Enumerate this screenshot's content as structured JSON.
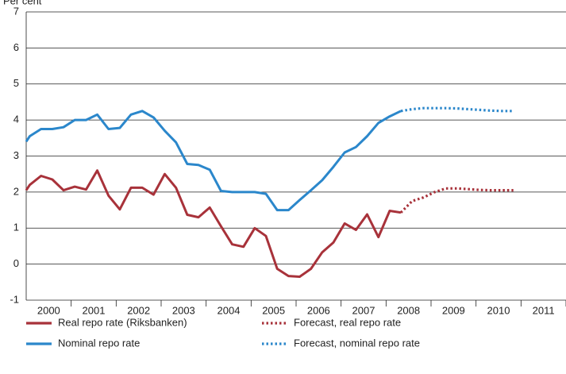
{
  "chart_data": {
    "type": "line",
    "ylabel": "Per cent",
    "ylim": [
      -1,
      7
    ],
    "yticks": [
      -1,
      0,
      1,
      2,
      3,
      4,
      5,
      6,
      7
    ],
    "xlim": [
      2000,
      2012
    ],
    "xticks": [
      {
        "value": 2000.5,
        "label": "2000"
      },
      {
        "value": 2001.5,
        "label": "2001"
      },
      {
        "value": 2002.5,
        "label": "2002"
      },
      {
        "value": 2003.5,
        "label": "2003"
      },
      {
        "value": 2004.5,
        "label": "2004"
      },
      {
        "value": 2005.5,
        "label": "2005"
      },
      {
        "value": 2006.5,
        "label": "2006"
      },
      {
        "value": 2007.5,
        "label": "2007"
      },
      {
        "value": 2008.5,
        "label": "2008"
      },
      {
        "value": 2009.5,
        "label": "2009"
      },
      {
        "value": 2010.5,
        "label": "2010"
      },
      {
        "value": 2011.5,
        "label": "2011"
      }
    ],
    "grid": true,
    "series": [
      {
        "name": "Real repo rate (Riksbanken)",
        "color": "#a8323a",
        "dashed": false,
        "x": [
          2000.0,
          2000.08,
          2000.33,
          2000.58,
          2000.83,
          2001.08,
          2001.33,
          2001.58,
          2001.83,
          2002.08,
          2002.33,
          2002.58,
          2002.83,
          2003.08,
          2003.33,
          2003.58,
          2003.83,
          2004.08,
          2004.33,
          2004.58,
          2004.83,
          2005.08,
          2005.33,
          2005.58,
          2005.83,
          2006.08,
          2006.33,
          2006.58,
          2006.83,
          2007.08,
          2007.33,
          2007.58,
          2007.83,
          2008.08,
          2008.33
        ],
        "values": [
          2.05,
          2.2,
          2.45,
          2.35,
          2.05,
          2.15,
          2.07,
          2.6,
          1.9,
          1.52,
          2.12,
          2.12,
          1.93,
          2.5,
          2.12,
          1.37,
          1.3,
          1.57,
          1.05,
          0.55,
          0.48,
          1.0,
          0.78,
          -0.13,
          -0.33,
          -0.35,
          -0.13,
          0.33,
          0.6,
          1.13,
          0.95,
          1.38,
          0.75,
          1.48,
          1.43
        ]
      },
      {
        "name": "Nominal repo rate",
        "color": "#2b87cb",
        "dashed": false,
        "x": [
          2000.0,
          2000.08,
          2000.33,
          2000.58,
          2000.83,
          2001.08,
          2001.33,
          2001.58,
          2001.83,
          2002.08,
          2002.33,
          2002.58,
          2002.83,
          2003.08,
          2003.33,
          2003.58,
          2003.83,
          2004.08,
          2004.33,
          2004.58,
          2004.83,
          2005.08,
          2005.33,
          2005.58,
          2005.83,
          2006.08,
          2006.33,
          2006.58,
          2006.83,
          2007.08,
          2007.33,
          2007.58,
          2007.83,
          2008.08,
          2008.33
        ],
        "values": [
          3.4,
          3.55,
          3.75,
          3.75,
          3.8,
          4.0,
          4.0,
          4.15,
          3.75,
          3.78,
          4.15,
          4.25,
          4.07,
          3.7,
          3.38,
          2.78,
          2.75,
          2.62,
          2.03,
          2.0,
          2.0,
          2.0,
          1.95,
          1.5,
          1.5,
          1.78,
          2.05,
          2.33,
          2.7,
          3.1,
          3.25,
          3.55,
          3.92,
          4.1,
          4.25
        ]
      },
      {
        "name": "Forecast, real repo rate",
        "color": "#a8323a",
        "dashed": true,
        "x": [
          2008.33,
          2008.58,
          2008.83,
          2009.08,
          2009.33,
          2009.58,
          2009.83,
          2010.08,
          2010.33,
          2010.58,
          2010.83
        ],
        "values": [
          1.43,
          1.75,
          1.85,
          2.0,
          2.1,
          2.1,
          2.08,
          2.06,
          2.05,
          2.05,
          2.05
        ]
      },
      {
        "name": "Forecast, nominal repo rate",
        "color": "#2b87cb",
        "dashed": true,
        "x": [
          2008.33,
          2008.58,
          2008.83,
          2009.08,
          2009.33,
          2009.58,
          2009.83,
          2010.08,
          2010.33,
          2010.58,
          2010.83
        ],
        "values": [
          4.25,
          4.3,
          4.33,
          4.33,
          4.33,
          4.32,
          4.3,
          4.28,
          4.26,
          4.25,
          4.25
        ]
      }
    ]
  }
}
